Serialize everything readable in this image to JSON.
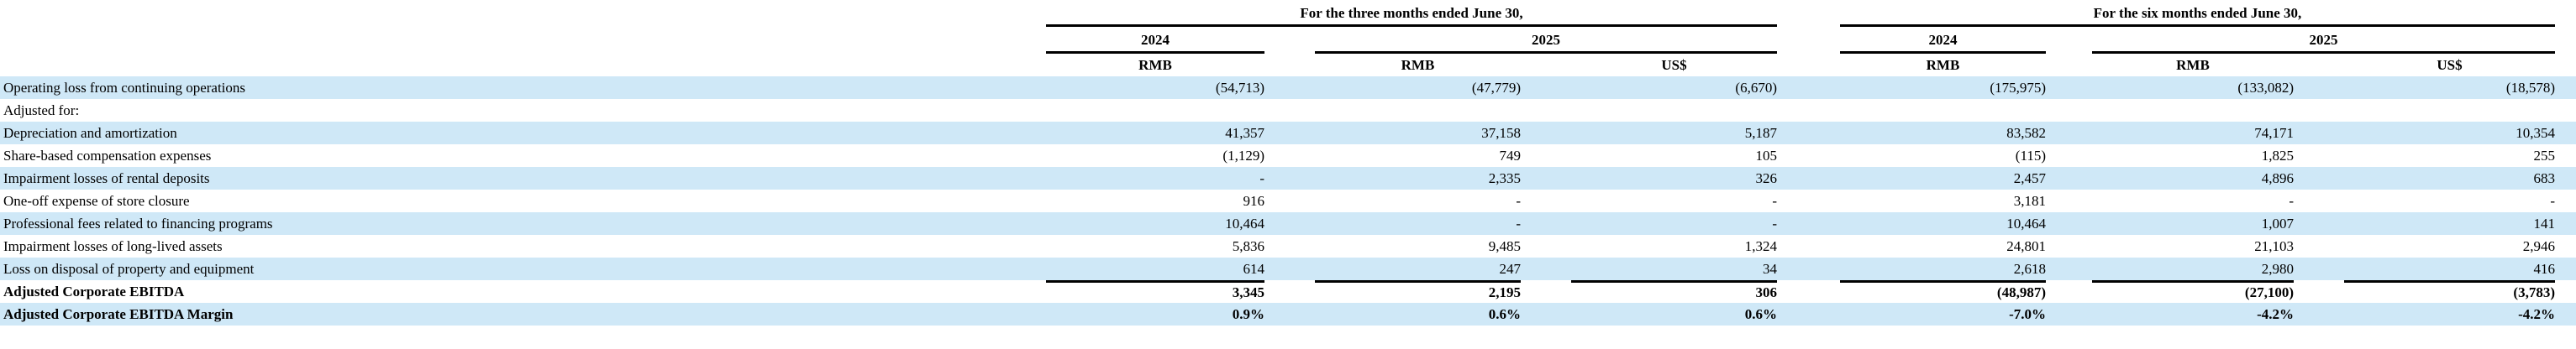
{
  "table": {
    "groups": [
      {
        "title": "For the three months ended June 30,",
        "subcolumns": [
          {
            "year": "2024",
            "currencies": [
              "RMB"
            ]
          },
          {
            "year": "2025",
            "currencies": [
              "RMB",
              "US$"
            ]
          }
        ]
      },
      {
        "title": "For the six months ended June 30,",
        "subcolumns": [
          {
            "year": "2024",
            "currencies": [
              "RMB"
            ]
          },
          {
            "year": "2025",
            "currencies": [
              "RMB",
              "US$"
            ]
          }
        ]
      }
    ],
    "rows": [
      {
        "label": "Operating loss from continuing operations",
        "values": [
          "(54,713)",
          "(47,779)",
          "(6,670)",
          "(175,975)",
          "(133,082)",
          "(18,578)"
        ],
        "shaded": true,
        "bold": false,
        "total": false
      },
      {
        "label": "Adjusted for:",
        "values": [
          "",
          "",
          "",
          "",
          "",
          ""
        ],
        "shaded": false,
        "bold": false,
        "total": false
      },
      {
        "label": "Depreciation and amortization",
        "values": [
          "41,357",
          "37,158",
          "5,187",
          "83,582",
          "74,171",
          "10,354"
        ],
        "shaded": true,
        "bold": false,
        "total": false
      },
      {
        "label": "Share-based compensation expenses",
        "values": [
          "(1,129)",
          "749",
          "105",
          "(115)",
          "1,825",
          "255"
        ],
        "shaded": false,
        "bold": false,
        "total": false
      },
      {
        "label": "Impairment losses of rental deposits",
        "values": [
          "-",
          "2,335",
          "326",
          "2,457",
          "4,896",
          "683"
        ],
        "shaded": true,
        "bold": false,
        "total": false
      },
      {
        "label": "One-off expense of store closure",
        "values": [
          "916",
          "-",
          "-",
          "3,181",
          "-",
          "-"
        ],
        "shaded": false,
        "bold": false,
        "total": false
      },
      {
        "label": "Professional fees related to financing programs",
        "values": [
          "10,464",
          "-",
          "-",
          "10,464",
          "1,007",
          "141"
        ],
        "shaded": true,
        "bold": false,
        "total": false
      },
      {
        "label": "Impairment losses of long-lived assets",
        "values": [
          "5,836",
          "9,485",
          "1,324",
          "24,801",
          "21,103",
          "2,946"
        ],
        "shaded": false,
        "bold": false,
        "total": false
      },
      {
        "label": "Loss on disposal of property and equipment",
        "values": [
          "614",
          "247",
          "34",
          "2,618",
          "2,980",
          "416"
        ],
        "shaded": true,
        "bold": false,
        "total": false
      },
      {
        "label": "Adjusted Corporate EBITDA",
        "values": [
          "3,345",
          "2,195",
          "306",
          "(48,987)",
          "(27,100)",
          "(3,783)"
        ],
        "shaded": false,
        "bold": true,
        "total": true
      },
      {
        "label": "Adjusted Corporate EBITDA Margin",
        "values": [
          "0.9%",
          "0.6%",
          "0.6%",
          "-7.0%",
          "-4.2%",
          "-4.2%"
        ],
        "shaded": true,
        "bold": true,
        "total": false
      }
    ]
  },
  "colors": {
    "row_highlight": "#cfe8f7",
    "rule": "#000000"
  }
}
